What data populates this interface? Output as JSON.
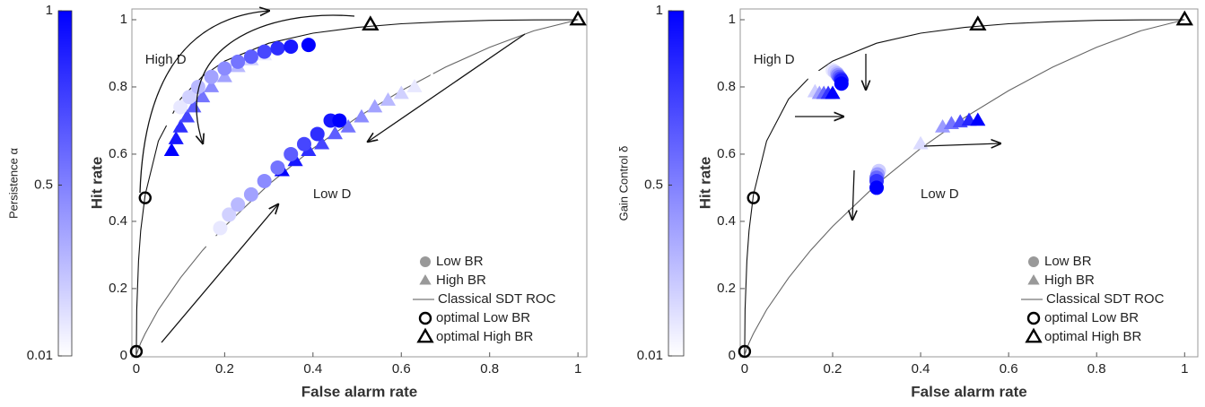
{
  "chart_data": [
    {
      "type": "scatter",
      "x_label": "False alarm rate",
      "y_label": "Hit rate",
      "xlim": [
        -0.01,
        1.02
      ],
      "ylim": [
        -0.003,
        1.032
      ],
      "xticks": [
        0,
        0.2,
        0.4,
        0.6,
        0.8,
        1
      ],
      "yticks": [
        0,
        0.2,
        0.4,
        0.6,
        0.8,
        1
      ],
      "colorbar": {
        "label": "Persistence α",
        "clim": [
          0.01,
          1
        ],
        "ticks": [
          0.01,
          0.5,
          1
        ],
        "colors": [
          "#ffffff",
          "#0000ff"
        ]
      },
      "curves": [
        {
          "color": "#111111",
          "x": [
            0,
            0.001,
            0.005,
            0.01,
            0.02,
            0.05,
            0.1,
            0.15,
            0.2,
            0.3,
            0.4,
            0.5,
            0.6,
            0.7,
            0.8,
            0.9,
            1
          ],
          "y": [
            0,
            0.138,
            0.282,
            0.372,
            0.479,
            0.639,
            0.764,
            0.832,
            0.877,
            0.93,
            0.96,
            0.977,
            0.988,
            0.994,
            0.998,
            0.9995,
            1
          ]
        },
        {
          "color": "#666666",
          "x": [
            0,
            0.001,
            0.005,
            0.01,
            0.02,
            0.05,
            0.1,
            0.15,
            0.2,
            0.3,
            0.4,
            0.5,
            0.6,
            0.7,
            0.8,
            0.9,
            1
          ],
          "y": [
            0,
            0.0055,
            0.021,
            0.038,
            0.066,
            0.137,
            0.232,
            0.314,
            0.385,
            0.51,
            0.617,
            0.709,
            0.789,
            0.859,
            0.918,
            0.967,
            1
          ]
        }
      ],
      "series": [
        {
          "marker": "triangle",
          "x": [
            0.08,
            0.09,
            0.1,
            0.115,
            0.13,
            0.15,
            0.17,
            0.2,
            0.23,
            0.26,
            0.29,
            0.33
          ],
          "y": [
            0.61,
            0.645,
            0.68,
            0.71,
            0.74,
            0.77,
            0.8,
            0.83,
            0.86,
            0.88,
            0.895,
            0.91
          ],
          "c": [
            1,
            0.91,
            0.82,
            0.73,
            0.64,
            0.55,
            0.46,
            0.37,
            0.28,
            0.19,
            0.1,
            0.01
          ]
        },
        {
          "marker": "circle",
          "x": [
            0.08,
            0.1,
            0.12,
            0.14,
            0.17,
            0.2,
            0.23,
            0.26,
            0.29,
            0.32,
            0.35,
            0.39
          ],
          "y": [
            0.7,
            0.74,
            0.77,
            0.8,
            0.83,
            0.855,
            0.875,
            0.89,
            0.905,
            0.915,
            0.92,
            0.925
          ],
          "c": [
            0.01,
            0.1,
            0.19,
            0.28,
            0.37,
            0.46,
            0.55,
            0.64,
            0.73,
            0.82,
            0.91,
            1
          ]
        },
        {
          "marker": "triangle",
          "x": [
            0.33,
            0.36,
            0.39,
            0.42,
            0.45,
            0.48,
            0.51,
            0.54,
            0.57,
            0.6,
            0.63,
            0.67
          ],
          "y": [
            0.55,
            0.58,
            0.61,
            0.63,
            0.66,
            0.68,
            0.71,
            0.74,
            0.76,
            0.78,
            0.8,
            0.82
          ],
          "c": [
            1,
            0.91,
            0.82,
            0.73,
            0.64,
            0.55,
            0.46,
            0.37,
            0.28,
            0.19,
            0.1,
            0.01
          ]
        },
        {
          "marker": "circle",
          "x": [
            0.17,
            0.19,
            0.21,
            0.23,
            0.26,
            0.29,
            0.32,
            0.35,
            0.38,
            0.41,
            0.44,
            0.46
          ],
          "y": [
            0.34,
            0.38,
            0.42,
            0.45,
            0.48,
            0.52,
            0.56,
            0.6,
            0.63,
            0.66,
            0.7,
            0.7
          ],
          "c": [
            0.01,
            0.1,
            0.19,
            0.28,
            0.37,
            0.46,
            0.55,
            0.64,
            0.73,
            0.82,
            0.91,
            1
          ]
        }
      ],
      "optimal": [
        {
          "marker": "circle",
          "x": [
            0,
            0.02
          ],
          "y": [
            0.013,
            0.47
          ]
        },
        {
          "marker": "triangle",
          "x": [
            0.53,
            1
          ],
          "y": [
            0.985,
            1
          ]
        }
      ],
      "annotations": [
        {
          "text": "High D",
          "x": 0.02,
          "y": 0.88
        },
        {
          "text": "Low D",
          "x": 0.4,
          "y": 0.48
        }
      ],
      "legend": [
        {
          "label": "Low BR",
          "marker": "circle",
          "color": "#999999"
        },
        {
          "label": "High BR",
          "marker": "triangle",
          "color": "#999999"
        },
        {
          "label": "Classical SDT ROC",
          "marker": "line",
          "color": "#555555"
        },
        {
          "label": "optimal Low BR",
          "marker": "open-circle",
          "color": "#000000"
        },
        {
          "label": "optimal High BR",
          "marker": "open-triangle",
          "color": "#000000"
        }
      ]
    },
    {
      "type": "scatter",
      "x_label": "False alarm rate",
      "y_label": "Hit rate",
      "xlim": [
        -0.01,
        1.03
      ],
      "ylim": [
        -0.003,
        1.032
      ],
      "xticks": [
        0,
        0.2,
        0.4,
        0.6,
        0.8,
        1
      ],
      "yticks": [
        0,
        0.2,
        0.4,
        0.6,
        0.8,
        1
      ],
      "colorbar": {
        "label": "Gain Control δ",
        "clim": [
          0.01,
          1
        ],
        "ticks": [
          0.01,
          0.5,
          1
        ],
        "colors": [
          "#ffffff",
          "#0000ff"
        ]
      },
      "curves": [
        {
          "color": "#111111",
          "x": [
            0,
            0.001,
            0.005,
            0.01,
            0.02,
            0.05,
            0.1,
            0.15,
            0.2,
            0.3,
            0.4,
            0.5,
            0.6,
            0.7,
            0.8,
            0.9,
            1
          ],
          "y": [
            0,
            0.138,
            0.282,
            0.372,
            0.479,
            0.639,
            0.764,
            0.832,
            0.877,
            0.93,
            0.96,
            0.977,
            0.988,
            0.994,
            0.998,
            0.9995,
            1
          ]
        },
        {
          "color": "#666666",
          "x": [
            0,
            0.001,
            0.005,
            0.01,
            0.02,
            0.05,
            0.1,
            0.15,
            0.2,
            0.3,
            0.4,
            0.5,
            0.6,
            0.7,
            0.8,
            0.9,
            1
          ],
          "y": [
            0,
            0.0055,
            0.021,
            0.038,
            0.066,
            0.137,
            0.232,
            0.314,
            0.385,
            0.51,
            0.617,
            0.709,
            0.789,
            0.859,
            0.918,
            0.967,
            1
          ]
        }
      ],
      "series": [
        {
          "marker": "triangle",
          "x": [
            0.15,
            0.16,
            0.17,
            0.18,
            0.19,
            0.2
          ],
          "y": [
            0.79,
            0.785,
            0.78,
            0.78,
            0.78,
            0.78
          ],
          "c": [
            0.01,
            0.2,
            0.4,
            0.6,
            0.8,
            1
          ]
        },
        {
          "marker": "circle",
          "x": [
            0.16,
            0.2,
            0.205,
            0.21,
            0.212,
            0.215,
            0.218,
            0.22,
            0.22
          ],
          "y": [
            0.83,
            0.85,
            0.845,
            0.84,
            0.835,
            0.83,
            0.825,
            0.82,
            0.81
          ],
          "c": [
            0.01,
            0.1,
            0.2,
            0.3,
            0.45,
            0.6,
            0.75,
            0.9,
            1
          ]
        },
        {
          "marker": "triangle",
          "x": [
            0.37,
            0.4,
            0.45,
            0.47,
            0.49,
            0.51,
            0.53
          ],
          "y": [
            0.63,
            0.63,
            0.68,
            0.69,
            0.695,
            0.7,
            0.7
          ],
          "c": [
            0.01,
            0.15,
            0.4,
            0.55,
            0.7,
            0.85,
            1
          ]
        },
        {
          "marker": "circle",
          "x": [
            0.31,
            0.305,
            0.302,
            0.3,
            0.3,
            0.3
          ],
          "y": [
            0.565,
            0.55,
            0.54,
            0.53,
            0.52,
            0.5
          ],
          "c": [
            0.01,
            0.2,
            0.4,
            0.6,
            0.8,
            1
          ]
        }
      ],
      "optimal": [
        {
          "marker": "circle",
          "x": [
            0,
            0.02
          ],
          "y": [
            0.013,
            0.47
          ]
        },
        {
          "marker": "triangle",
          "x": [
            0.53,
            1
          ],
          "y": [
            0.985,
            1
          ]
        }
      ],
      "annotations": [
        {
          "text": "High D",
          "x": 0.02,
          "y": 0.88
        },
        {
          "text": "Low D",
          "x": 0.4,
          "y": 0.48
        }
      ],
      "legend": [
        {
          "label": "Low BR",
          "marker": "circle",
          "color": "#999999"
        },
        {
          "label": "High BR",
          "marker": "triangle",
          "color": "#999999"
        },
        {
          "label": "Classical SDT ROC",
          "marker": "line",
          "color": "#555555"
        },
        {
          "label": "optimal Low BR",
          "marker": "open-circle",
          "color": "#000000"
        },
        {
          "label": "optimal High BR",
          "marker": "open-triangle",
          "color": "#000000"
        }
      ]
    }
  ]
}
